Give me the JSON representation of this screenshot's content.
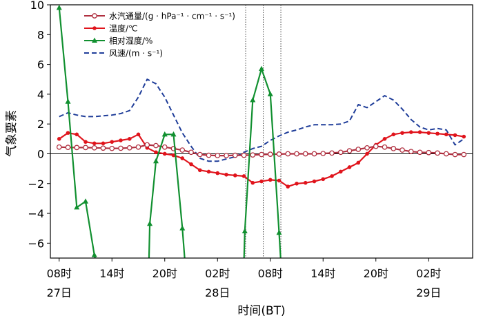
{
  "chart_data": {
    "type": "line",
    "xlabel": "时间(BT)",
    "ylabel": "气象要素",
    "ylim": [
      -7,
      10
    ],
    "yticks": [
      -6,
      -4,
      -2,
      0,
      2,
      4,
      6,
      8,
      10
    ],
    "xlim": [
      7,
      55
    ],
    "xticks": [
      {
        "x": 8,
        "line1": "08时",
        "line2": "27日"
      },
      {
        "x": 14,
        "line1": "14时",
        "line2": ""
      },
      {
        "x": 20,
        "line1": "20时",
        "line2": ""
      },
      {
        "x": 26,
        "line1": "02时",
        "line2": "28日"
      },
      {
        "x": 32,
        "line1": "08时",
        "line2": ""
      },
      {
        "x": 38,
        "line1": "14时",
        "line2": ""
      },
      {
        "x": 44,
        "line1": "20时",
        "line2": ""
      },
      {
        "x": 50,
        "line1": "02时",
        "line2": "29日"
      }
    ],
    "vlines": [
      29.2,
      31.2,
      33.2
    ],
    "zero_line": true,
    "legend_position": "top-center",
    "series": [
      {
        "name": "水汽通量/(g · hPa⁻¹ · cm⁻¹ · s⁻¹)",
        "color": "#b03040",
        "style": "solid",
        "marker": "open-circle",
        "points": [
          [
            8,
            0.45
          ],
          [
            9,
            0.43
          ],
          [
            10,
            0.42
          ],
          [
            11,
            0.42
          ],
          [
            12,
            0.4
          ],
          [
            13,
            0.38
          ],
          [
            14,
            0.36
          ],
          [
            15,
            0.37
          ],
          [
            16,
            0.4
          ],
          [
            17,
            0.45
          ],
          [
            18,
            0.6
          ],
          [
            19,
            0.55
          ],
          [
            20,
            0.45
          ],
          [
            21,
            0.35
          ],
          [
            22,
            0.25
          ],
          [
            23,
            0.1
          ],
          [
            24,
            -0.05
          ],
          [
            25,
            -0.1
          ],
          [
            26,
            -0.12
          ],
          [
            27,
            -0.12
          ],
          [
            28,
            -0.1
          ],
          [
            29,
            -0.1
          ],
          [
            30,
            -0.08
          ],
          [
            31,
            -0.05
          ],
          [
            32,
            -0.03
          ],
          [
            33,
            -0.02
          ],
          [
            34,
            0.0
          ],
          [
            35,
            0.0
          ],
          [
            36,
            0.0
          ],
          [
            37,
            0.0
          ],
          [
            38,
            0.02
          ],
          [
            39,
            0.05
          ],
          [
            40,
            0.1
          ],
          [
            41,
            0.2
          ],
          [
            42,
            0.3
          ],
          [
            43,
            0.4
          ],
          [
            44,
            0.5
          ],
          [
            45,
            0.45
          ],
          [
            46,
            0.35
          ],
          [
            47,
            0.25
          ],
          [
            48,
            0.15
          ],
          [
            49,
            0.1
          ],
          [
            50,
            0.08
          ],
          [
            51,
            0.05
          ],
          [
            52,
            0.0
          ],
          [
            53,
            -0.05
          ],
          [
            54,
            -0.05
          ]
        ]
      },
      {
        "name": "温度/℃",
        "color": "#e0141c",
        "style": "solid",
        "marker": "filled-circle",
        "points": [
          [
            8,
            1.0
          ],
          [
            9,
            1.4
          ],
          [
            10,
            1.3
          ],
          [
            11,
            0.8
          ],
          [
            12,
            0.7
          ],
          [
            13,
            0.7
          ],
          [
            14,
            0.8
          ],
          [
            15,
            0.9
          ],
          [
            16,
            1.0
          ],
          [
            17,
            1.3
          ],
          [
            18,
            0.4
          ],
          [
            19,
            0.1
          ],
          [
            20,
            0.0
          ],
          [
            21,
            -0.1
          ],
          [
            22,
            -0.3
          ],
          [
            23,
            -0.7
          ],
          [
            24,
            -1.1
          ],
          [
            25,
            -1.2
          ],
          [
            26,
            -1.3
          ],
          [
            27,
            -1.4
          ],
          [
            28,
            -1.45
          ],
          [
            29,
            -1.5
          ],
          [
            30,
            -1.95
          ],
          [
            31,
            -1.85
          ],
          [
            32,
            -1.75
          ],
          [
            33,
            -1.8
          ],
          [
            34,
            -2.2
          ],
          [
            35,
            -2.0
          ],
          [
            36,
            -1.95
          ],
          [
            37,
            -1.85
          ],
          [
            38,
            -1.7
          ],
          [
            39,
            -1.5
          ],
          [
            40,
            -1.2
          ],
          [
            41,
            -0.9
          ],
          [
            42,
            -0.6
          ],
          [
            43,
            0.0
          ],
          [
            44,
            0.6
          ],
          [
            45,
            1.0
          ],
          [
            46,
            1.3
          ],
          [
            47,
            1.4
          ],
          [
            48,
            1.45
          ],
          [
            49,
            1.45
          ],
          [
            50,
            1.4
          ],
          [
            51,
            1.35
          ],
          [
            52,
            1.3
          ],
          [
            53,
            1.25
          ],
          [
            54,
            1.15
          ]
        ]
      },
      {
        "name": "相对湿度/%",
        "color": "#119030",
        "style": "solid",
        "marker": "filled-triangle",
        "segments": [
          [
            [
              8,
              9.8
            ],
            [
              9,
              3.5
            ],
            [
              10,
              -3.6
            ],
            [
              11,
              -3.2
            ],
            [
              12,
              -6.8
            ],
            [
              12.2,
              -7.3
            ]
          ],
          [
            [
              18.2,
              -7.3
            ],
            [
              18.3,
              -4.7
            ],
            [
              19,
              -0.5
            ],
            [
              20,
              1.3
            ],
            [
              21,
              1.3
            ],
            [
              22,
              -5.0
            ],
            [
              22.3,
              -7.3
            ]
          ],
          [
            [
              29.0,
              -7.3
            ],
            [
              29.1,
              -5.2
            ],
            [
              30,
              3.6
            ],
            [
              31,
              5.7
            ],
            [
              32,
              4.0
            ],
            [
              33,
              -5.3
            ],
            [
              33.2,
              -7.3
            ]
          ]
        ]
      },
      {
        "name": "风速/(m · s⁻¹)",
        "color": "#1f3d99",
        "style": "dashed",
        "marker": "none",
        "points": [
          [
            8,
            2.5
          ],
          [
            9,
            2.75
          ],
          [
            10,
            2.6
          ],
          [
            11,
            2.5
          ],
          [
            12,
            2.5
          ],
          [
            13,
            2.55
          ],
          [
            14,
            2.6
          ],
          [
            15,
            2.7
          ],
          [
            16,
            2.9
          ],
          [
            17,
            3.8
          ],
          [
            18,
            5.0
          ],
          [
            19,
            4.7
          ],
          [
            20,
            3.8
          ],
          [
            21,
            2.6
          ],
          [
            22,
            1.4
          ],
          [
            23,
            0.5
          ],
          [
            24,
            -0.3
          ],
          [
            25,
            -0.5
          ],
          [
            26,
            -0.5
          ],
          [
            27,
            -0.35
          ],
          [
            28,
            -0.2
          ],
          [
            29,
            0.1
          ],
          [
            30,
            0.35
          ],
          [
            31,
            0.5
          ],
          [
            32,
            0.9
          ],
          [
            33,
            1.2
          ],
          [
            34,
            1.45
          ],
          [
            35,
            1.6
          ],
          [
            36,
            1.8
          ],
          [
            37,
            1.95
          ],
          [
            38,
            1.95
          ],
          [
            39,
            1.95
          ],
          [
            40,
            2.0
          ],
          [
            41,
            2.2
          ],
          [
            42,
            3.3
          ],
          [
            43,
            3.1
          ],
          [
            44,
            3.5
          ],
          [
            45,
            3.9
          ],
          [
            46,
            3.6
          ],
          [
            47,
            3.0
          ],
          [
            48,
            2.3
          ],
          [
            49,
            1.8
          ],
          [
            50,
            1.6
          ],
          [
            51,
            1.7
          ],
          [
            52,
            1.6
          ],
          [
            53,
            0.6
          ],
          [
            54,
            1.0
          ]
        ]
      }
    ]
  }
}
